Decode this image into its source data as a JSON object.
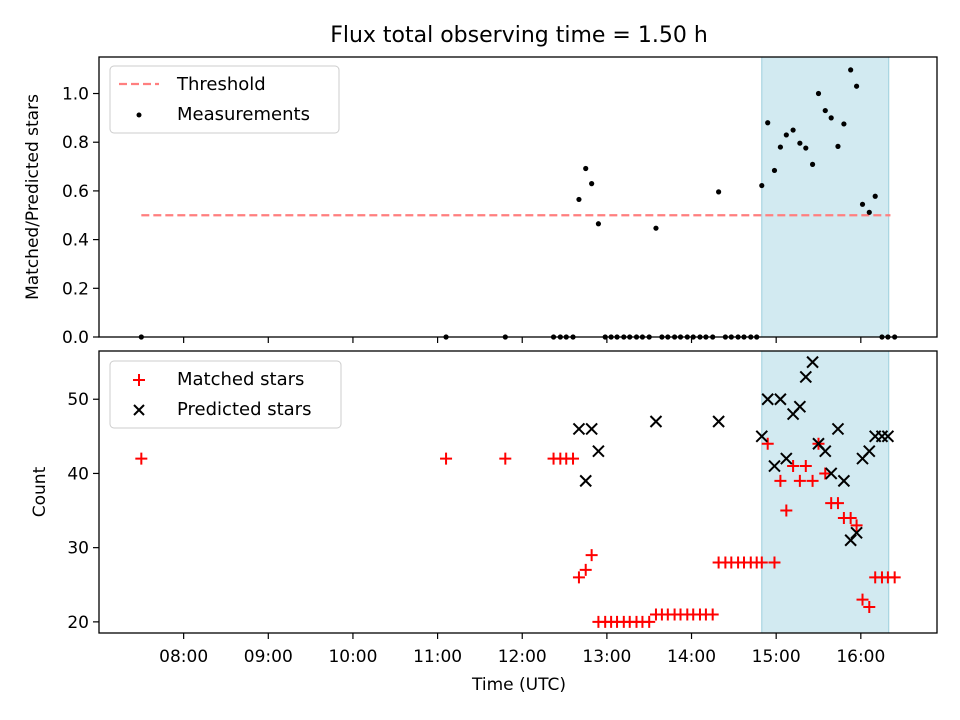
{
  "chart_data": [
    {
      "type": "scatter",
      "title": "Flux total observing time = 1.50 h",
      "xlabel": "",
      "ylabel": "Matched/Predicted stars",
      "xlim": [
        7.0,
        16.9
      ],
      "ylim": [
        0.0,
        1.15
      ],
      "yticks": [
        0.0,
        0.2,
        0.4,
        0.6,
        0.8,
        1.0
      ],
      "ytick_labels": [
        "0.0",
        "0.2",
        "0.4",
        "0.6",
        "0.8",
        "1.0"
      ],
      "highlight_span": [
        14.83,
        16.33
      ],
      "legend_location": "top-left",
      "series": [
        {
          "name": "Threshold",
          "kind": "line",
          "style": "dashed",
          "color": "#ff7f7f",
          "x": [
            7.5,
            16.35
          ],
          "y": [
            0.5,
            0.5
          ]
        },
        {
          "name": "Measurements",
          "kind": "points",
          "color": "#000000",
          "x": [
            7.5,
            11.1,
            11.8,
            12.37,
            12.45,
            12.52,
            12.6,
            12.67,
            12.75,
            12.82,
            12.9,
            12.98,
            13.05,
            13.12,
            13.2,
            13.27,
            13.35,
            13.42,
            13.5,
            13.58,
            13.65,
            13.72,
            13.8,
            13.87,
            13.95,
            14.02,
            14.1,
            14.17,
            14.25,
            14.32,
            14.4,
            14.47,
            14.55,
            14.62,
            14.7,
            14.77,
            14.83,
            14.9,
            14.98,
            15.05,
            15.12,
            15.2,
            15.28,
            15.35,
            15.43,
            15.5,
            15.58,
            15.65,
            15.73,
            15.8,
            15.88,
            15.95,
            16.02,
            16.1,
            16.17,
            16.25,
            16.32,
            16.4
          ],
          "y": [
            0.0,
            0.0,
            0.0,
            0.0,
            0.0,
            0.0,
            0.0,
            0.565,
            0.692,
            0.63,
            0.465,
            0.0,
            0.0,
            0.0,
            0.0,
            0.0,
            0.0,
            0.0,
            0.0,
            0.447,
            0.0,
            0.0,
            0.0,
            0.0,
            0.0,
            0.0,
            0.0,
            0.0,
            0.0,
            0.596,
            0.0,
            0.0,
            0.0,
            0.0,
            0.0,
            0.0,
            0.622,
            0.88,
            0.684,
            0.78,
            0.83,
            0.85,
            0.796,
            0.776,
            0.709,
            1.0,
            0.93,
            0.9,
            0.783,
            0.875,
            1.097,
            1.03,
            0.545,
            0.512,
            0.578,
            0.0,
            0.0,
            0.0
          ]
        }
      ]
    },
    {
      "type": "scatter",
      "title": "",
      "xlabel": "Time (UTC)",
      "ylabel": "Count",
      "xlim": [
        7.0,
        16.9
      ],
      "ylim": [
        18.5,
        56.5
      ],
      "yticks": [
        20,
        30,
        40,
        50
      ],
      "ytick_labels": [
        "20",
        "30",
        "40",
        "50"
      ],
      "xticks": [
        8,
        9,
        10,
        11,
        12,
        13,
        14,
        15,
        16
      ],
      "xtick_labels": [
        "08:00",
        "09:00",
        "10:00",
        "11:00",
        "12:00",
        "13:00",
        "14:00",
        "15:00",
        "16:00"
      ],
      "highlight_span": [
        14.83,
        16.33
      ],
      "legend_location": "top-left",
      "series": [
        {
          "name": "Matched stars",
          "kind": "plus",
          "color": "#ff0000",
          "x": [
            7.5,
            11.1,
            11.8,
            12.37,
            12.45,
            12.52,
            12.6,
            12.67,
            12.75,
            12.82,
            12.9,
            12.98,
            13.05,
            13.12,
            13.2,
            13.27,
            13.35,
            13.42,
            13.5,
            13.58,
            13.65,
            13.72,
            13.8,
            13.87,
            13.95,
            14.02,
            14.1,
            14.17,
            14.25,
            14.32,
            14.4,
            14.47,
            14.55,
            14.62,
            14.7,
            14.77,
            14.83,
            14.9,
            14.98,
            15.05,
            15.12,
            15.2,
            15.28,
            15.35,
            15.43,
            15.5,
            15.58,
            15.65,
            15.73,
            15.8,
            15.88,
            15.95,
            16.02,
            16.1,
            16.17,
            16.25,
            16.32,
            16.4
          ],
          "y": [
            42,
            42,
            42,
            42,
            42,
            42,
            42,
            26,
            27,
            29,
            20,
            20,
            20,
            20,
            20,
            20,
            20,
            20,
            20,
            21,
            21,
            21,
            21,
            21,
            21,
            21,
            21,
            21,
            21,
            28,
            28,
            28,
            28,
            28,
            28,
            28,
            28,
            44,
            28,
            39,
            35,
            41,
            39,
            41,
            39,
            44,
            40,
            36,
            36,
            34,
            34,
            33,
            23,
            22,
            26,
            26,
            26,
            26
          ]
        },
        {
          "name": "Predicted stars",
          "kind": "x",
          "color": "#000000",
          "x": [
            12.67,
            12.75,
            12.82,
            12.9,
            13.58,
            14.32,
            14.83,
            14.9,
            14.98,
            15.05,
            15.12,
            15.2,
            15.28,
            15.35,
            15.43,
            15.5,
            15.58,
            15.65,
            15.73,
            15.8,
            15.88,
            15.95,
            16.02,
            16.1,
            16.17,
            16.25,
            16.32
          ],
          "y": [
            46,
            39,
            46,
            43,
            47,
            47,
            45,
            50,
            41,
            50,
            42,
            48,
            49,
            53,
            55,
            44,
            43,
            40,
            46,
            39,
            31,
            32,
            42,
            43,
            45,
            45,
            45
          ]
        }
      ]
    }
  ]
}
